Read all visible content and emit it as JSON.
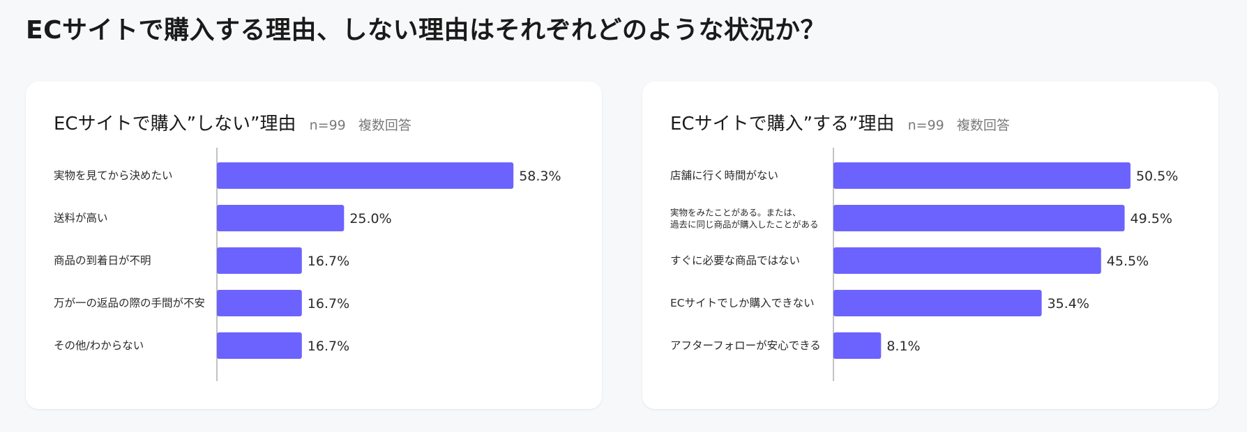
{
  "page": {
    "title": "ECサイトで購入する理由、しない理由はそれぞれどのような状況か？"
  },
  "colors": {
    "bar": "#6c63ff",
    "axis": "#9a9a9a",
    "label": "#2a2a2a"
  },
  "cards": [
    {
      "title": "ECサイトで購入”しない”理由",
      "sample": "n=99",
      "question_type": "複数回答"
    },
    {
      "title": "ECサイトで購入”する”理由",
      "sample": "n=99",
      "question_type": "複数回答"
    }
  ],
  "chart_data": [
    {
      "type": "bar",
      "orientation": "horizontal",
      "title": "ECサイトで購入”しない”理由",
      "categories": [
        "実物を見てから決めたい",
        "送料が高い",
        "商品の到着日が不明",
        "万が一の返品の際の手間が不安",
        "その他/わからない"
      ],
      "values": [
        58.3,
        25.0,
        16.7,
        16.7,
        16.7
      ],
      "value_labels": [
        "58.3%",
        "25.0%",
        "16.7%",
        "16.7%",
        "16.7%"
      ],
      "xlim": [
        0,
        66.5
      ],
      "grid": false
    },
    {
      "type": "bar",
      "orientation": "horizontal",
      "title": "ECサイトで購入”する”理由",
      "categories": [
        "店舗に行く時間がない",
        "実物をみたことがある。または、\n過去に同じ商品が購入したことがある",
        "すぐに必要な商品ではない",
        "ECサイトでしか購入できない",
        "アフターフォローが安心できる"
      ],
      "values": [
        50.5,
        49.5,
        45.5,
        35.4,
        8.1
      ],
      "value_labels": [
        "50.5%",
        "49.5%",
        "45.5%",
        "35.4%",
        "8.1%"
      ],
      "xlim": [
        0,
        57.5
      ],
      "grid": false
    }
  ]
}
